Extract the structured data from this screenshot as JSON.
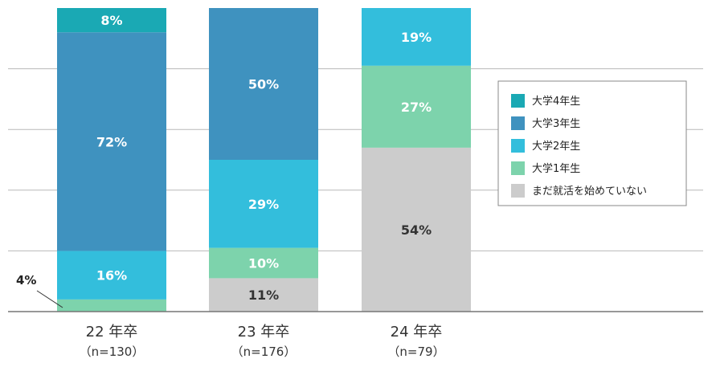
{
  "chart_data": {
    "type": "bar",
    "stacked": true,
    "percent": true,
    "categories": [
      "22 年卒",
      "23 年卒",
      "24 年卒"
    ],
    "sample_sizes": [
      "（n=130）",
      "（n=176）",
      "（n=79）"
    ],
    "series": [
      {
        "name": "まだ就活を始めていない",
        "color": "#cccccc",
        "text_color": "#333333",
        "values": [
          0,
          11,
          54
        ],
        "labels": [
          "",
          "11%",
          "54%"
        ]
      },
      {
        "name": "大学1年生",
        "color": "#7dd3ac",
        "text_color": "#ffffff",
        "values": [
          4,
          10,
          27
        ],
        "labels": [
          "",
          "10%",
          "27%"
        ]
      },
      {
        "name": "大学2年生",
        "color": "#33bedc",
        "text_color": "#ffffff",
        "values": [
          16,
          29,
          19
        ],
        "labels": [
          "16%",
          "29%",
          "19%"
        ]
      },
      {
        "name": "大学3年生",
        "color": "#3f92bf",
        "text_color": "#ffffff",
        "values": [
          72,
          50,
          0
        ],
        "labels": [
          "72%",
          "50%",
          ""
        ]
      },
      {
        "name": "大学4年生",
        "color": "#1aa9b4",
        "text_color": "#ffffff",
        "values": [
          8,
          0,
          0
        ],
        "labels": [
          "8%",
          "",
          ""
        ]
      }
    ],
    "legend_order": [
      "大学4年生",
      "大学3年生",
      "大学2年生",
      "大学1年生",
      "まだ就活を始めていない"
    ],
    "callouts": [
      {
        "category_index": 0,
        "series": "大学1年生",
        "text": "4%"
      }
    ],
    "ylim": [
      0,
      100
    ],
    "grid": true,
    "legend_position": "right"
  }
}
